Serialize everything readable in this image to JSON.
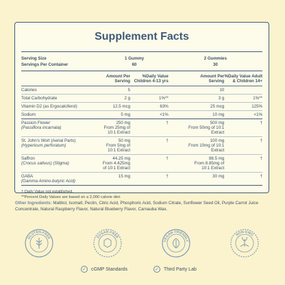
{
  "title": "Supplement Facts",
  "serving": {
    "size_label": "Serving Size",
    "size_1": "1 Gummy",
    "size_2": "2 Gummies",
    "per_container_label": "Servings Per Container",
    "per_container_1": "60",
    "per_container_2": "30"
  },
  "header": {
    "amount_1": "Amount Per Serving",
    "dv_1": "%Daily Value Children 4-13 yrs",
    "amount_2": "Amount Per Serving",
    "dv_2": "%Daily Value Adult & Children 14+"
  },
  "nutrients": [
    {
      "name": "Calories",
      "amt1": "5",
      "dv1": "",
      "amt2": "10",
      "dv2": ""
    },
    {
      "name": "Total Carbohydrate",
      "amt1": "2 g",
      "dv1": "1%**",
      "amt2": "3 g",
      "dv2": "1%**"
    },
    {
      "name": "Vitamin D2 (as Ergocalciferol)",
      "amt1": "12.5 mcg",
      "dv1": "63%",
      "amt2": "25 mcg",
      "dv2": "125%"
    },
    {
      "name": "Sodium",
      "amt1": "5 mg",
      "dv1": "<1%",
      "amt2": "10 mg",
      "dv2": "<1%"
    }
  ],
  "ingredients": [
    {
      "name": "Passion Flower",
      "latin": "(Passiflora incarnata)",
      "amt1": "250 mg",
      "src1": "From 25mg of 10:1 Extract",
      "dv1": "†",
      "amt2": "500 mg",
      "src2": "From 50mg of 10:1 Extract",
      "dv2": "†"
    },
    {
      "name": "St. John's Wort (Aerial Parts)",
      "latin": "(Hypericum perforatum)",
      "amt1": "50 mg",
      "src1": "From 5mg of 10:1 Extract",
      "dv1": "†",
      "amt2": "100 mg",
      "src2": "From 10mg of 10:1 Extract",
      "dv2": "†"
    },
    {
      "name": "Saffron",
      "latin": "(Crocus sativus) (Stigma)",
      "amt1": "44.25 mg",
      "src1": "From 4.425mg of 10:1 Extract",
      "dv1": "†",
      "amt2": "88.5 mg",
      "src2": "From 8.85mg of 10:1 Extract",
      "dv2": "†"
    },
    {
      "name": "GABA",
      "latin": "(Gamma Amino-butyric Acid)",
      "amt1": "15 mg",
      "src1": "",
      "dv1": "†",
      "amt2": "30 mg",
      "src2": "",
      "dv2": "†"
    }
  ],
  "footnotes": {
    "dagger": "† Daily Value not established.",
    "percent": "**Percent Daily Values are based on a 2,000 calorie diet."
  },
  "other": {
    "label": "Other Ingredients:",
    "text": " Maltitol, Isomalt, Pectin, Citric Acid, Phosphoric Acid, Sodium Citrate, Sunflower Seed Oil, Purple Carrot Juice Concentrate, Natural Raspberry Flavor, Natural Blueberry Flavor, Carnauba Wax."
  },
  "badges": [
    "GLUTEN-FREE",
    "SUGAR-FREE",
    "VEGAN FRIENDLY",
    "NON-GMO"
  ],
  "bottom": {
    "left": "cGMP Standards",
    "right": "Third Party Lab"
  },
  "colors": {
    "background": "#fbf3cd",
    "ink": "#3f5a78",
    "accent": "#6a88a8"
  }
}
